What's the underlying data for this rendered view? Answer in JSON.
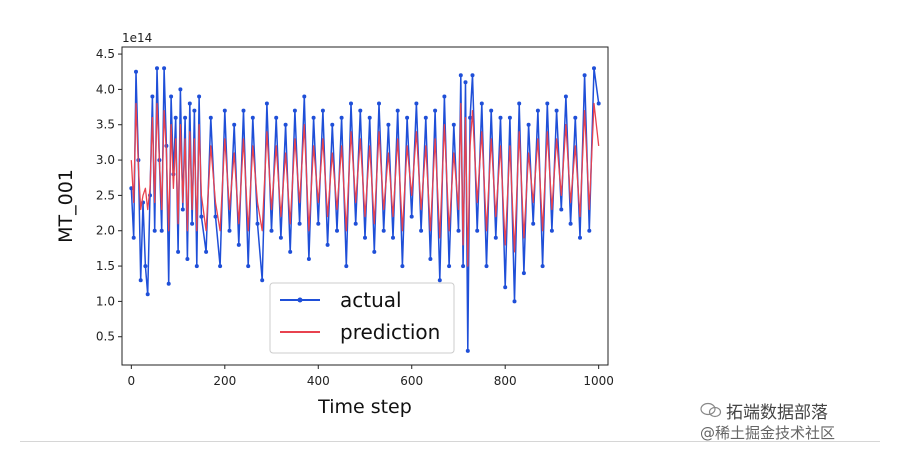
{
  "chart_data": {
    "type": "line",
    "title": "",
    "xlabel": "Time step",
    "ylabel": "MT_001",
    "offset_text": "1e14",
    "xlim": [
      -20,
      1020
    ],
    "ylim": [
      0.1,
      4.6
    ],
    "x_ticks": [
      0,
      200,
      400,
      600,
      800,
      1000
    ],
    "y_ticks": [
      0.5,
      1.0,
      1.5,
      2.0,
      2.5,
      3.0,
      3.5,
      4.0,
      4.5
    ],
    "x_tick_labels": [
      "0",
      "200",
      "400",
      "600",
      "800",
      "1000"
    ],
    "y_tick_labels": [
      "0.5",
      "1.0",
      "1.5",
      "2.0",
      "2.5",
      "3.0",
      "3.5",
      "4.0",
      "4.5"
    ],
    "legend_position": "lower-center",
    "series": [
      {
        "name": "actual",
        "color": "#1f4fd8",
        "marker": "dot",
        "x": [
          0,
          5,
          10,
          15,
          20,
          25,
          30,
          35,
          40,
          45,
          50,
          55,
          60,
          65,
          70,
          75,
          80,
          85,
          90,
          95,
          100,
          105,
          110,
          115,
          120,
          125,
          130,
          135,
          140,
          145,
          150,
          160,
          170,
          180,
          190,
          200,
          210,
          220,
          230,
          240,
          250,
          260,
          270,
          280,
          290,
          300,
          310,
          320,
          330,
          340,
          350,
          360,
          370,
          380,
          390,
          400,
          410,
          420,
          430,
          440,
          450,
          460,
          470,
          480,
          490,
          500,
          510,
          520,
          530,
          540,
          550,
          560,
          570,
          580,
          590,
          600,
          610,
          620,
          630,
          640,
          650,
          660,
          670,
          680,
          690,
          700,
          705,
          710,
          715,
          720,
          725,
          730,
          740,
          750,
          760,
          770,
          780,
          790,
          800,
          810,
          820,
          830,
          840,
          850,
          860,
          870,
          880,
          890,
          900,
          910,
          920,
          930,
          940,
          950,
          960,
          970,
          980,
          990,
          1000
        ],
        "y": [
          2.6,
          1.9,
          4.25,
          3.0,
          1.3,
          2.4,
          1.5,
          1.1,
          2.5,
          3.9,
          2.0,
          4.3,
          3.0,
          2.0,
          4.3,
          3.2,
          1.25,
          3.9,
          2.8,
          3.6,
          1.7,
          4.0,
          2.3,
          3.6,
          1.6,
          3.8,
          2.1,
          3.7,
          1.5,
          3.9,
          2.2,
          1.7,
          3.6,
          2.2,
          1.5,
          3.7,
          2.0,
          3.5,
          1.8,
          3.7,
          1.5,
          3.6,
          2.1,
          1.3,
          3.8,
          2.0,
          3.6,
          1.9,
          3.5,
          1.7,
          3.7,
          2.1,
          3.9,
          1.6,
          3.6,
          2.1,
          3.7,
          1.8,
          3.5,
          2.0,
          3.6,
          1.5,
          3.8,
          2.1,
          3.7,
          1.9,
          3.6,
          1.7,
          3.8,
          2.0,
          3.5,
          1.9,
          3.7,
          1.5,
          3.6,
          2.2,
          3.8,
          2.0,
          3.6,
          1.6,
          3.7,
          1.3,
          3.9,
          1.5,
          3.5,
          2.0,
          4.2,
          1.5,
          4.1,
          0.3,
          3.6,
          4.2,
          2.0,
          3.8,
          1.5,
          3.7,
          1.9,
          3.6,
          1.2,
          3.6,
          1.0,
          3.8,
          1.4,
          3.5,
          2.1,
          3.7,
          1.5,
          3.8,
          2.0,
          3.7,
          2.3,
          3.9,
          2.1,
          3.6,
          1.9,
          4.2,
          2.0,
          4.3,
          3.8
        ]
      },
      {
        "name": "prediction",
        "color": "#e8424f",
        "marker": "none",
        "x": [
          0,
          5,
          10,
          15,
          20,
          25,
          30,
          35,
          40,
          45,
          50,
          55,
          60,
          65,
          70,
          75,
          80,
          85,
          90,
          95,
          100,
          105,
          110,
          115,
          120,
          125,
          130,
          135,
          140,
          145,
          150,
          160,
          170,
          180,
          190,
          200,
          210,
          220,
          230,
          240,
          250,
          260,
          270,
          280,
          290,
          300,
          310,
          320,
          330,
          340,
          350,
          360,
          370,
          380,
          390,
          400,
          410,
          420,
          430,
          440,
          450,
          460,
          470,
          480,
          490,
          500,
          510,
          520,
          530,
          540,
          550,
          560,
          570,
          580,
          590,
          600,
          610,
          620,
          630,
          640,
          650,
          660,
          670,
          680,
          690,
          700,
          705,
          710,
          715,
          720,
          725,
          730,
          740,
          750,
          760,
          770,
          780,
          790,
          800,
          810,
          820,
          830,
          840,
          850,
          860,
          870,
          880,
          890,
          900,
          910,
          920,
          930,
          940,
          950,
          960,
          970,
          980,
          990,
          1000
        ],
        "y": [
          3.0,
          2.4,
          3.8,
          2.9,
          2.3,
          2.5,
          2.6,
          2.3,
          2.6,
          3.6,
          2.4,
          3.8,
          3.0,
          2.3,
          3.7,
          3.1,
          2.0,
          3.5,
          2.6,
          3.3,
          2.1,
          3.5,
          2.4,
          3.3,
          2.0,
          3.4,
          2.3,
          3.3,
          2.0,
          3.5,
          2.5,
          2.0,
          3.2,
          2.4,
          2.0,
          3.3,
          2.3,
          3.1,
          2.1,
          3.3,
          2.0,
          3.2,
          2.4,
          2.0,
          3.4,
          2.3,
          3.2,
          2.2,
          3.1,
          2.1,
          3.3,
          2.4,
          3.5,
          2.0,
          3.2,
          2.4,
          3.3,
          2.2,
          3.1,
          2.3,
          3.2,
          2.0,
          3.4,
          2.4,
          3.3,
          2.2,
          3.2,
          2.1,
          3.4,
          2.3,
          3.1,
          2.2,
          3.3,
          2.0,
          3.2,
          2.5,
          3.4,
          2.3,
          3.2,
          2.0,
          3.3,
          1.9,
          3.5,
          2.0,
          3.1,
          2.3,
          3.8,
          1.8,
          3.6,
          1.5,
          3.2,
          3.7,
          2.4,
          3.4,
          2.0,
          3.3,
          2.2,
          3.2,
          1.8,
          3.2,
          1.7,
          3.4,
          1.9,
          3.1,
          2.4,
          3.3,
          2.0,
          3.4,
          2.3,
          3.3,
          2.5,
          3.5,
          2.4,
          3.2,
          2.2,
          3.7,
          2.3,
          3.8,
          3.2
        ]
      }
    ]
  },
  "watermark": {
    "line1": "拓端数据部落",
    "line2": "@稀土掘金技术社区"
  }
}
